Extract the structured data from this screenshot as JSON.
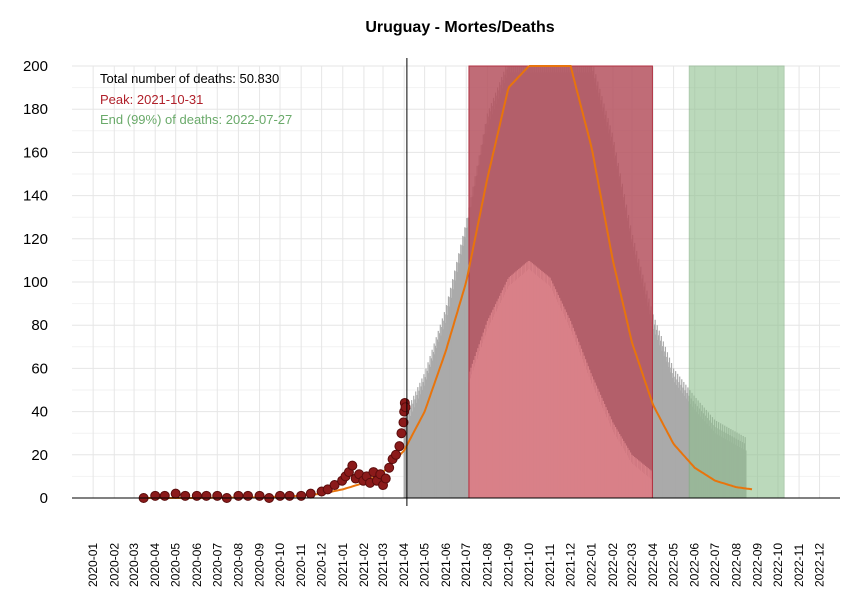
{
  "chart_data": {
    "type": "line",
    "title": "Uruguay - Mortes/Deaths",
    "xlabel": "",
    "ylabel": "",
    "ylim": [
      0,
      200
    ],
    "xlim": [
      "2019-12-01",
      "2022-12-31"
    ],
    "yticks": [
      0,
      20,
      40,
      60,
      80,
      100,
      120,
      140,
      160,
      180,
      200
    ],
    "xticks": [
      "2020-01",
      "2020-02",
      "2020-03",
      "2020-04",
      "2020-05",
      "2020-06",
      "2020-07",
      "2020-08",
      "2020-09",
      "2020-10",
      "2020-11",
      "2020-12",
      "2021-01",
      "2021-02",
      "2021-03",
      "2021-04",
      "2021-05",
      "2021-06",
      "2021-07",
      "2021-08",
      "2021-09",
      "2021-10",
      "2021-11",
      "2021-12",
      "2022-01",
      "2022-02",
      "2022-03",
      "2022-04",
      "2022-05",
      "2022-06",
      "2022-07",
      "2022-08",
      "2022-09",
      "2022-10",
      "2022-11",
      "2022-12"
    ],
    "grid": true,
    "vertical_line_date": "2021-04-05",
    "annotations": {
      "total": "Total number of deaths: 50.830",
      "peak": "Peak: 2021-10-31",
      "end": "End (99%) of deaths: 2022-07-27"
    },
    "colors": {
      "observed": "#8b1a1a",
      "observed_edge": "#5a0c0c",
      "fit": "#e8740c",
      "band": "#aaaaaa",
      "peak_region": "#b5525f",
      "peak_region_light": "#d98088",
      "end_region": "#8fc08f",
      "peak_text": "#b0202a",
      "end_text": "#6aaa6a"
    },
    "shaded_regions": {
      "peak": [
        "2021-07-05",
        "2022-03-31"
      ],
      "end": [
        "2022-05-24",
        "2022-10-10"
      ]
    },
    "series": [
      {
        "kind": "observed_points",
        "x": [
          "2020-03-15",
          "2020-04-01",
          "2020-04-15",
          "2020-05-01",
          "2020-05-15",
          "2020-06-01",
          "2020-06-15",
          "2020-07-01",
          "2020-07-15",
          "2020-08-01",
          "2020-08-15",
          "2020-09-01",
          "2020-09-15",
          "2020-10-01",
          "2020-10-15",
          "2020-11-01",
          "2020-11-15",
          "2020-12-01",
          "2020-12-10",
          "2020-12-20",
          "2020-12-31",
          "2021-01-05",
          "2021-01-10",
          "2021-01-15",
          "2021-01-20",
          "2021-01-25",
          "2021-01-31",
          "2021-02-05",
          "2021-02-10",
          "2021-02-15",
          "2021-02-20",
          "2021-02-25",
          "2021-03-01",
          "2021-03-05",
          "2021-03-10",
          "2021-03-15",
          "2021-03-20",
          "2021-03-25",
          "2021-03-28",
          "2021-03-31",
          "2021-04-01",
          "2021-04-02",
          "2021-04-03"
        ],
        "values": [
          0,
          1,
          1,
          2,
          1,
          1,
          1,
          1,
          0,
          1,
          1,
          1,
          0,
          1,
          1,
          1,
          2,
          3,
          4,
          6,
          8,
          10,
          12,
          15,
          9,
          11,
          8,
          10,
          7,
          12,
          8,
          11,
          6,
          9,
          14,
          18,
          20,
          24,
          30,
          35,
          40,
          44,
          42
        ]
      },
      {
        "kind": "fit_line",
        "x": [
          "2020-03-15",
          "2020-06-01",
          "2020-09-01",
          "2020-11-01",
          "2020-12-01",
          "2021-01-01",
          "2021-02-01",
          "2021-03-01",
          "2021-04-01",
          "2021-05-01",
          "2021-06-01",
          "2021-07-01",
          "2021-08-01",
          "2021-09-01",
          "2021-10-01",
          "2021-10-31",
          "2021-12-01",
          "2022-01-01",
          "2022-02-01",
          "2022-03-01",
          "2022-04-01",
          "2022-05-01",
          "2022-06-01",
          "2022-07-01",
          "2022-08-01",
          "2022-08-25"
        ],
        "values": [
          0,
          0,
          0.3,
          1,
          2,
          4,
          7,
          12,
          22,
          40,
          68,
          100,
          148,
          190,
          200,
          200,
          200,
          162,
          110,
          72,
          43,
          25,
          14,
          8,
          5,
          4
        ]
      },
      {
        "kind": "band_upper",
        "x": [
          "2021-04-01",
          "2021-05-01",
          "2021-06-01",
          "2021-07-01",
          "2021-08-01",
          "2021-09-01",
          "2021-10-01",
          "2022-01-01",
          "2022-02-01",
          "2022-03-01",
          "2022-04-01",
          "2022-05-01",
          "2022-06-01",
          "2022-07-01",
          "2022-08-15"
        ],
        "values": [
          35,
          55,
          85,
          125,
          175,
          200,
          200,
          200,
          165,
          120,
          82,
          57,
          44,
          33,
          25
        ]
      },
      {
        "kind": "band_lower",
        "x": [
          "2021-04-01",
          "2021-05-01",
          "2021-06-01",
          "2021-07-01",
          "2021-08-01",
          "2021-09-01",
          "2021-10-01",
          "2021-11-01",
          "2021-12-01",
          "2022-01-01",
          "2022-02-01",
          "2022-03-01",
          "2022-04-01",
          "2022-05-01",
          "2022-06-01",
          "2022-07-01",
          "2022-08-15"
        ],
        "values": [
          15,
          22,
          33,
          52,
          80,
          100,
          108,
          100,
          80,
          55,
          33,
          18,
          10,
          7,
          5,
          3,
          2
        ]
      }
    ]
  }
}
